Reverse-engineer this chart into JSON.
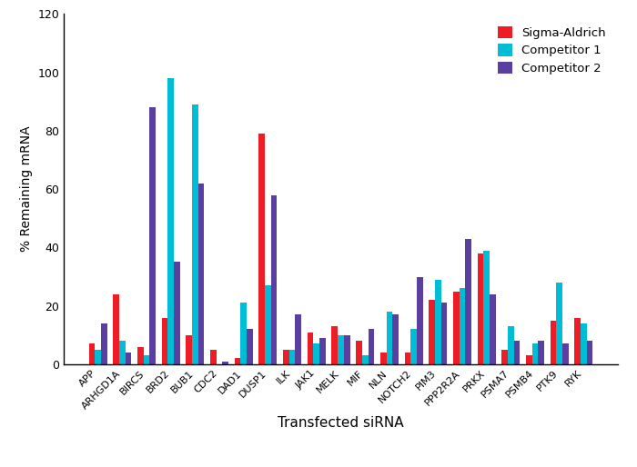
{
  "categories": [
    "APP",
    "ARHGD1A",
    "BIRCS",
    "BRD2",
    "BUB1",
    "CDC2",
    "DAD1",
    "DUSP1",
    "ILK",
    "JAK1",
    "MELK",
    "MIF",
    "NLN",
    "NOTCH2",
    "PIM3",
    "PPP2R2A",
    "PRKX",
    "PSMA7",
    "PSMB4",
    "PTK9",
    "RYK"
  ],
  "sigma_aldrich": [
    7,
    24,
    6,
    16,
    10,
    5,
    2,
    79,
    5,
    11,
    13,
    8,
    4,
    4,
    22,
    25,
    38,
    5,
    3,
    15,
    16
  ],
  "competitor1": [
    5,
    8,
    3,
    98,
    89,
    0,
    21,
    27,
    5,
    7,
    10,
    3,
    18,
    12,
    29,
    26,
    39,
    13,
    7,
    28,
    14
  ],
  "competitor2": [
    14,
    4,
    88,
    35,
    62,
    1,
    12,
    58,
    17,
    9,
    10,
    12,
    17,
    30,
    21,
    43,
    24,
    8,
    8,
    7,
    8
  ],
  "colors": {
    "sigma_aldrich": "#ee1c25",
    "competitor1": "#00bcd4",
    "competitor2": "#5b3fa0"
  },
  "legend_labels": [
    "Sigma-Aldrich",
    "Competitor 1",
    "Competitor 2"
  ],
  "ylabel": "% Remaining mRNA",
  "xlabel": "Transfected siRNA",
  "ylim": [
    0,
    120
  ],
  "yticks": [
    0,
    20,
    40,
    60,
    80,
    100,
    120
  ],
  "bar_width": 0.25,
  "background_color": "#ffffff",
  "fig_width": 7.0,
  "fig_height": 5.14,
  "dpi": 100
}
